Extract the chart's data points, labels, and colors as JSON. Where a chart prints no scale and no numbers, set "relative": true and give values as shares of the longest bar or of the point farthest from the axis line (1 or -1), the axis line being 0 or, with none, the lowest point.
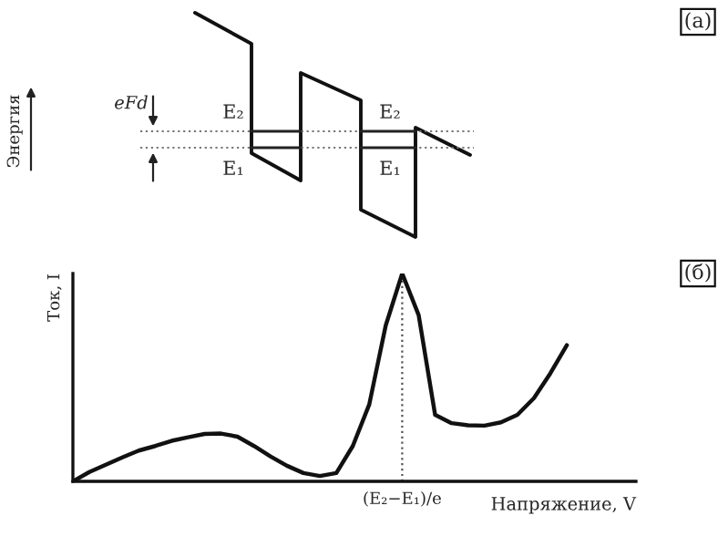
{
  "chart_data": {
    "type": "line",
    "relative": true,
    "xlabel": "Напряжение, V",
    "ylabel": "Ток, I",
    "marker": "none",
    "line_style": "solid",
    "annotations": [
      "(а)",
      "Энергия",
      "eFd",
      "E₂",
      "E₂",
      "E₁",
      "E₁",
      "(б)",
      "(E₂−E₁)/e"
    ],
    "categories": [
      null,
      null,
      null,
      null,
      null,
      null,
      null,
      null,
      null,
      null,
      null,
      null,
      null,
      null,
      null,
      null,
      null,
      null,
      null,
      null,
      null,
      null,
      null,
      null,
      null,
      null,
      null,
      null,
      null,
      null,
      null
    ],
    "series": [
      {
        "color": "#111111",
        "values": [
          0,
          0.045,
          0.08,
          0.115,
          0.148,
          0.17,
          0.195,
          0.212,
          0.228,
          0.23,
          0.215,
          0.17,
          0.12,
          0.075,
          0.04,
          0.026,
          0.04,
          0.17,
          0.37,
          0.75,
          1,
          0.8,
          0.32,
          0.28,
          0.27,
          0.268,
          0.284,
          0.32,
          0.4,
          0.52,
          0.655
        ]
      }
    ]
  }
}
